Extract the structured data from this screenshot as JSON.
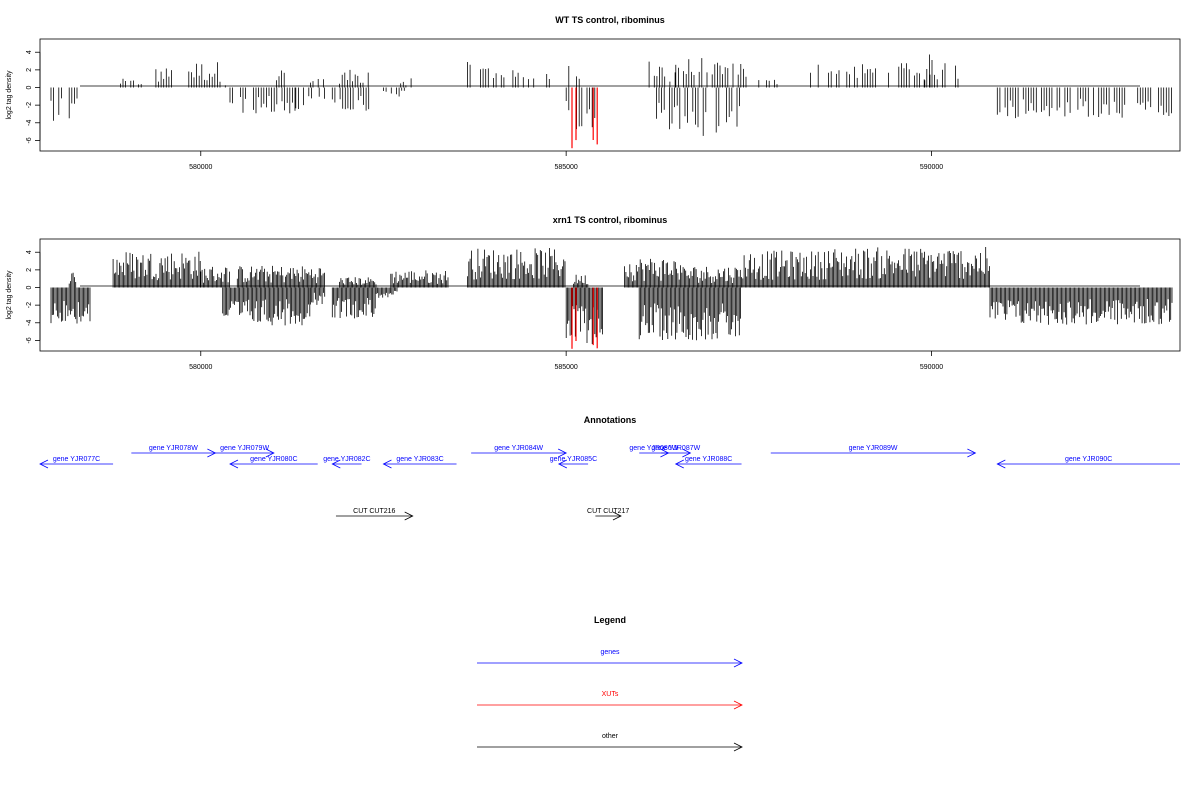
{
  "chart_data": [
    {
      "type": "bar",
      "title": "WT TS control, ribominus",
      "ylabel": "log2 tag density",
      "xlim": [
        577800,
        593400
      ],
      "ylim": [
        -7.2,
        5.5
      ],
      "xticks": [
        580000,
        585000,
        590000
      ],
      "yticks": [
        4,
        2,
        0,
        -2,
        -4,
        -6
      ],
      "series": [
        {
          "name": "plus",
          "color": "#000000",
          "segments": [
            {
              "x": [
                578900,
                579200
              ],
              "ymax": 1.0
            },
            {
              "x": [
                579350,
                579700
              ],
              "ymax": 2.3
            },
            {
              "x": [
                579800,
                580300
              ],
              "ymax": 3.0
            },
            {
              "x": [
                580300,
                580400
              ],
              "ymax": 1.2
            },
            {
              "x": [
                581000,
                581200
              ],
              "ymax": 2.2
            },
            {
              "x": [
                581500,
                581700
              ],
              "ymax": 1.0
            },
            {
              "x": [
                581900,
                582300
              ],
              "ymax": 2.0
            },
            {
              "x": [
                582700,
                582900
              ],
              "ymax": 1.2
            },
            {
              "x": [
                583650,
                584150
              ],
              "ymax": 2.9
            },
            {
              "x": [
                584200,
                584800
              ],
              "ymax": 2.0
            },
            {
              "x": [
                585000,
                585200
              ],
              "ymax": 2.6
            },
            {
              "x": [
                586100,
                586500
              ],
              "ymax": 3.0
            },
            {
              "x": [
                586500,
                587500
              ],
              "ymax": 3.4
            },
            {
              "x": [
                587600,
                587900
              ],
              "ymax": 1.0
            },
            {
              "x": [
                588200,
                590000
              ],
              "ymax": 2.8
            },
            {
              "x": [
                589900,
                590500
              ],
              "ymax": 3.8
            },
            {
              "x": [
                590700,
                590800
              ],
              "ymax": 3.0
            }
          ]
        },
        {
          "name": "minus",
          "color": "#000000",
          "segments": [
            {
              "x": [
                577950,
                578350
              ],
              "ymin": -4.0
            },
            {
              "x": [
                580400,
                581300
              ],
              "ymin": -3.0
            },
            {
              "x": [
                581300,
                581700
              ],
              "ymin": -2.5
            },
            {
              "x": [
                581800,
                582300
              ],
              "ymin": -3.0
            },
            {
              "x": [
                582500,
                582800
              ],
              "ymin": -1.2
            },
            {
              "x": [
                585000,
                585400
              ],
              "ymin": -4.8
            },
            {
              "x": [
                586200,
                587400
              ],
              "ymin": -5.5
            },
            {
              "x": [
                590900,
                593300
              ],
              "ymin": -3.5
            }
          ]
        },
        {
          "name": "XUT",
          "color": "#ff0000",
          "segments": [
            {
              "x": [
                585080,
                585180
              ],
              "ymin": -7.0
            },
            {
              "x": [
                585370,
                585440
              ],
              "ymin": -7.0
            }
          ]
        }
      ]
    },
    {
      "type": "bar",
      "title": "xrn1 TS control, ribominus",
      "ylabel": "log2 tag density",
      "xlim": [
        577800,
        593400
      ],
      "ylim": [
        -7.2,
        5.5
      ],
      "xticks": [
        580000,
        585000,
        590000
      ],
      "yticks": [
        4,
        2,
        0,
        -2,
        -4,
        -6
      ],
      "series": [
        {
          "name": "plus",
          "color": "#000000",
          "segments": [
            {
              "x": [
                578200,
                578300
              ],
              "ymax": 1.9
            },
            {
              "x": [
                578800,
                580000
              ],
              "ymax": 4.2
            },
            {
              "x": [
                580000,
                580400
              ],
              "ymax": 2.5
            },
            {
              "x": [
                580500,
                581700
              ],
              "ymax": 2.5
            },
            {
              "x": [
                581900,
                582400
              ],
              "ymax": 1.2
            },
            {
              "x": [
                582600,
                583400
              ],
              "ymax": 2.0
            },
            {
              "x": [
                583650,
                585000
              ],
              "ymax": 4.5
            },
            {
              "x": [
                585100,
                585300
              ],
              "ymax": 1.5
            },
            {
              "x": [
                585800,
                586600
              ],
              "ymax": 3.5
            },
            {
              "x": [
                586600,
                587400
              ],
              "ymax": 2.5
            },
            {
              "x": [
                587400,
                588500
              ],
              "ymax": 4.2
            },
            {
              "x": [
                588500,
                590800
              ],
              "ymax": 4.6
            }
          ]
        },
        {
          "name": "minus",
          "color": "#000000",
          "segments": [
            {
              "x": [
                577950,
                578500
              ],
              "ymin": -4.2
            },
            {
              "x": [
                580300,
                581500
              ],
              "ymin": -4.3
            },
            {
              "x": [
                581500,
                581700
              ],
              "ymin": -2.0
            },
            {
              "x": [
                581800,
                582400
              ],
              "ymin": -3.5
            },
            {
              "x": [
                582400,
                582700
              ],
              "ymin": -1.2
            },
            {
              "x": [
                585000,
                585500
              ],
              "ymin": -6.5
            },
            {
              "x": [
                586000,
                587400
              ],
              "ymin": -6.0
            },
            {
              "x": [
                590800,
                593300
              ],
              "ymin": -4.3
            }
          ]
        },
        {
          "name": "XUT",
          "color": "#ff0000",
          "segments": [
            {
              "x": [
                585080,
                585180
              ],
              "ymin": -7.0
            },
            {
              "x": [
                585370,
                585440
              ],
              "ymin": -7.0
            }
          ]
        }
      ]
    }
  ],
  "annotations": {
    "title": "Annotations",
    "genes_color": "#0000ff",
    "other_color": "#000000",
    "items": [
      {
        "label": "gene YJR077C",
        "start": 577800,
        "end": 578800,
        "strand": "-",
        "row": 1,
        "kind": "gene"
      },
      {
        "label": "gene YJR078W",
        "start": 579050,
        "end": 580200,
        "strand": "+",
        "row": 0,
        "kind": "gene"
      },
      {
        "label": "gene YJR079W",
        "start": 580200,
        "end": 581000,
        "strand": "+",
        "row": 0,
        "kind": "gene"
      },
      {
        "label": "gene YJR080C",
        "start": 580400,
        "end": 581600,
        "strand": "-",
        "row": 1,
        "kind": "gene"
      },
      {
        "label": "gene YJR082C",
        "start": 581800,
        "end": 582200,
        "strand": "-",
        "row": 1,
        "kind": "gene"
      },
      {
        "label": "gene YJR083C",
        "start": 582500,
        "end": 583500,
        "strand": "-",
        "row": 1,
        "kind": "gene"
      },
      {
        "label": "gene YJR084W",
        "start": 583700,
        "end": 585000,
        "strand": "+",
        "row": 0,
        "kind": "gene"
      },
      {
        "label": "gene YJR085C",
        "start": 584900,
        "end": 585300,
        "strand": "-",
        "row": 1,
        "kind": "gene"
      },
      {
        "label": "gene YJR086W",
        "start": 586000,
        "end": 586400,
        "strand": "+",
        "row": 0,
        "kind": "gene"
      },
      {
        "label": "gene YJR087W",
        "start": 586300,
        "end": 586700,
        "strand": "+",
        "row": 0,
        "kind": "gene"
      },
      {
        "label": "gene YJR088C",
        "start": 586500,
        "end": 587400,
        "strand": "-",
        "row": 1,
        "kind": "gene"
      },
      {
        "label": "gene YJR089W",
        "start": 587800,
        "end": 590600,
        "strand": "+",
        "row": 0,
        "kind": "gene"
      },
      {
        "label": "gene YJR090C",
        "start": 590900,
        "end": 593400,
        "strand": "-",
        "row": 1,
        "kind": "gene"
      },
      {
        "label": "CUT CUT216",
        "start": 581850,
        "end": 582900,
        "strand": "+",
        "row": 2,
        "kind": "other"
      },
      {
        "label": "CUT CUT217",
        "start": 585400,
        "end": 585750,
        "strand": "+",
        "row": 2,
        "kind": "other"
      }
    ]
  },
  "legend": {
    "title": "Legend",
    "entries": [
      {
        "label": "genes",
        "color": "#0000ff"
      },
      {
        "label": "XUTs",
        "color": "#ff0000"
      },
      {
        "label": "other",
        "color": "#000000"
      }
    ]
  }
}
